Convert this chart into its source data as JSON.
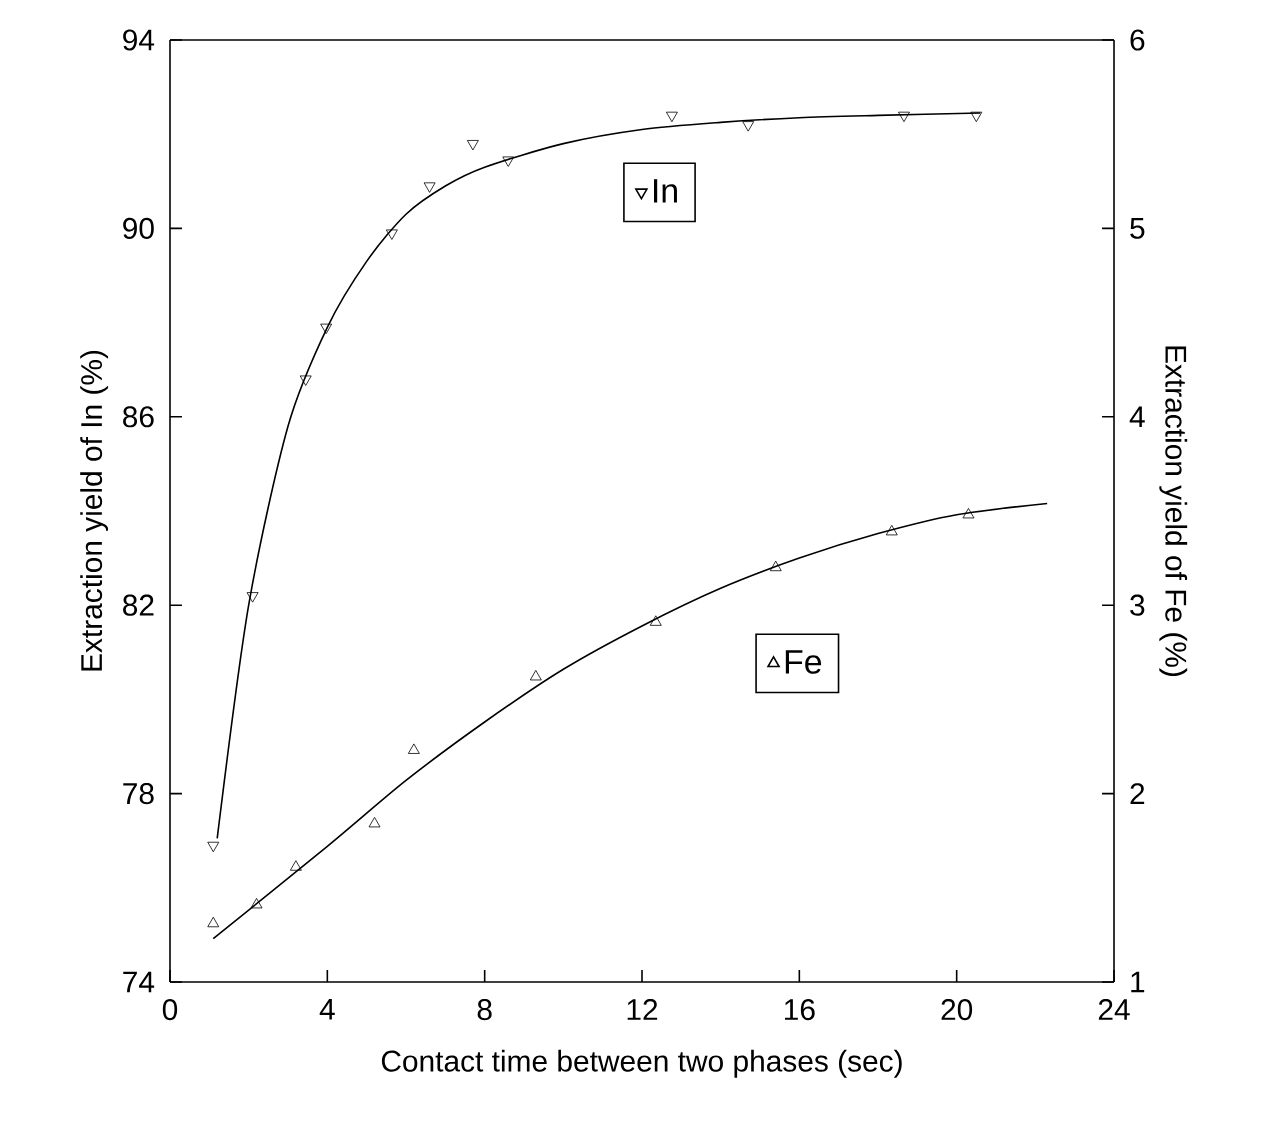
{
  "chart_data": {
    "type": "scatter",
    "xlabel": "Contact time between two phases (sec)",
    "ylabel": "Extraction yield of In (%)",
    "y2label": "Extraction yield of Fe (%)",
    "xlim": [
      0,
      24
    ],
    "xticks": [
      0,
      4,
      8,
      12,
      16,
      20,
      24
    ],
    "ylim": [
      74,
      94
    ],
    "yticks": [
      74,
      78,
      82,
      86,
      90,
      94
    ],
    "y2lim": [
      1,
      6
    ],
    "y2ticks": [
      1,
      2,
      3,
      4,
      5,
      6
    ],
    "legend": "right",
    "grid": false,
    "series": [
      {
        "name": "In",
        "marker": "triangle down",
        "color": "#000000",
        "x": [
          1.1,
          2.1,
          3.45,
          3.97,
          5.64,
          6.6,
          7.7,
          8.6,
          12.76,
          14.7,
          18.66,
          20.5
        ],
        "values": [
          76.9,
          82.2,
          86.8,
          87.9,
          89.9,
          90.9,
          91.8,
          91.45,
          92.4,
          92.2,
          92.4,
          92.4
        ]
      },
      {
        "type": "line",
        "marker": "none",
        "color": "#000000",
        "x": [
          1.2,
          2,
          3,
          4,
          5,
          6,
          7,
          8,
          10,
          12,
          14,
          16,
          18,
          20.6
        ],
        "values": [
          77.05,
          82,
          85.8,
          87.9,
          89.3,
          90.3,
          90.9,
          91.3,
          91.8,
          92.1,
          92.25,
          92.35,
          92.4,
          92.45
        ]
      },
      {
        "name": "Fe",
        "marker": "triangle",
        "axis": "y2",
        "color": "#000000",
        "x": [
          1.1,
          2.2,
          3.2,
          5.2,
          6.2,
          9.3,
          12.35,
          15.4,
          18.35,
          20.3
        ],
        "values": [
          1.31,
          1.41,
          1.61,
          1.84,
          2.23,
          2.62,
          2.91,
          3.2,
          3.39,
          3.48
        ]
      },
      {
        "type": "line",
        "marker": "none",
        "axis": "y2",
        "color": "#000000",
        "x": [
          1.1,
          4,
          6,
          8,
          10,
          12,
          14,
          16,
          18,
          20,
          22.3
        ],
        "values": [
          1.23,
          1.72,
          2.07,
          2.38,
          2.66,
          2.89,
          3.09,
          3.25,
          3.38,
          3.48,
          3.54
        ]
      }
    ]
  }
}
